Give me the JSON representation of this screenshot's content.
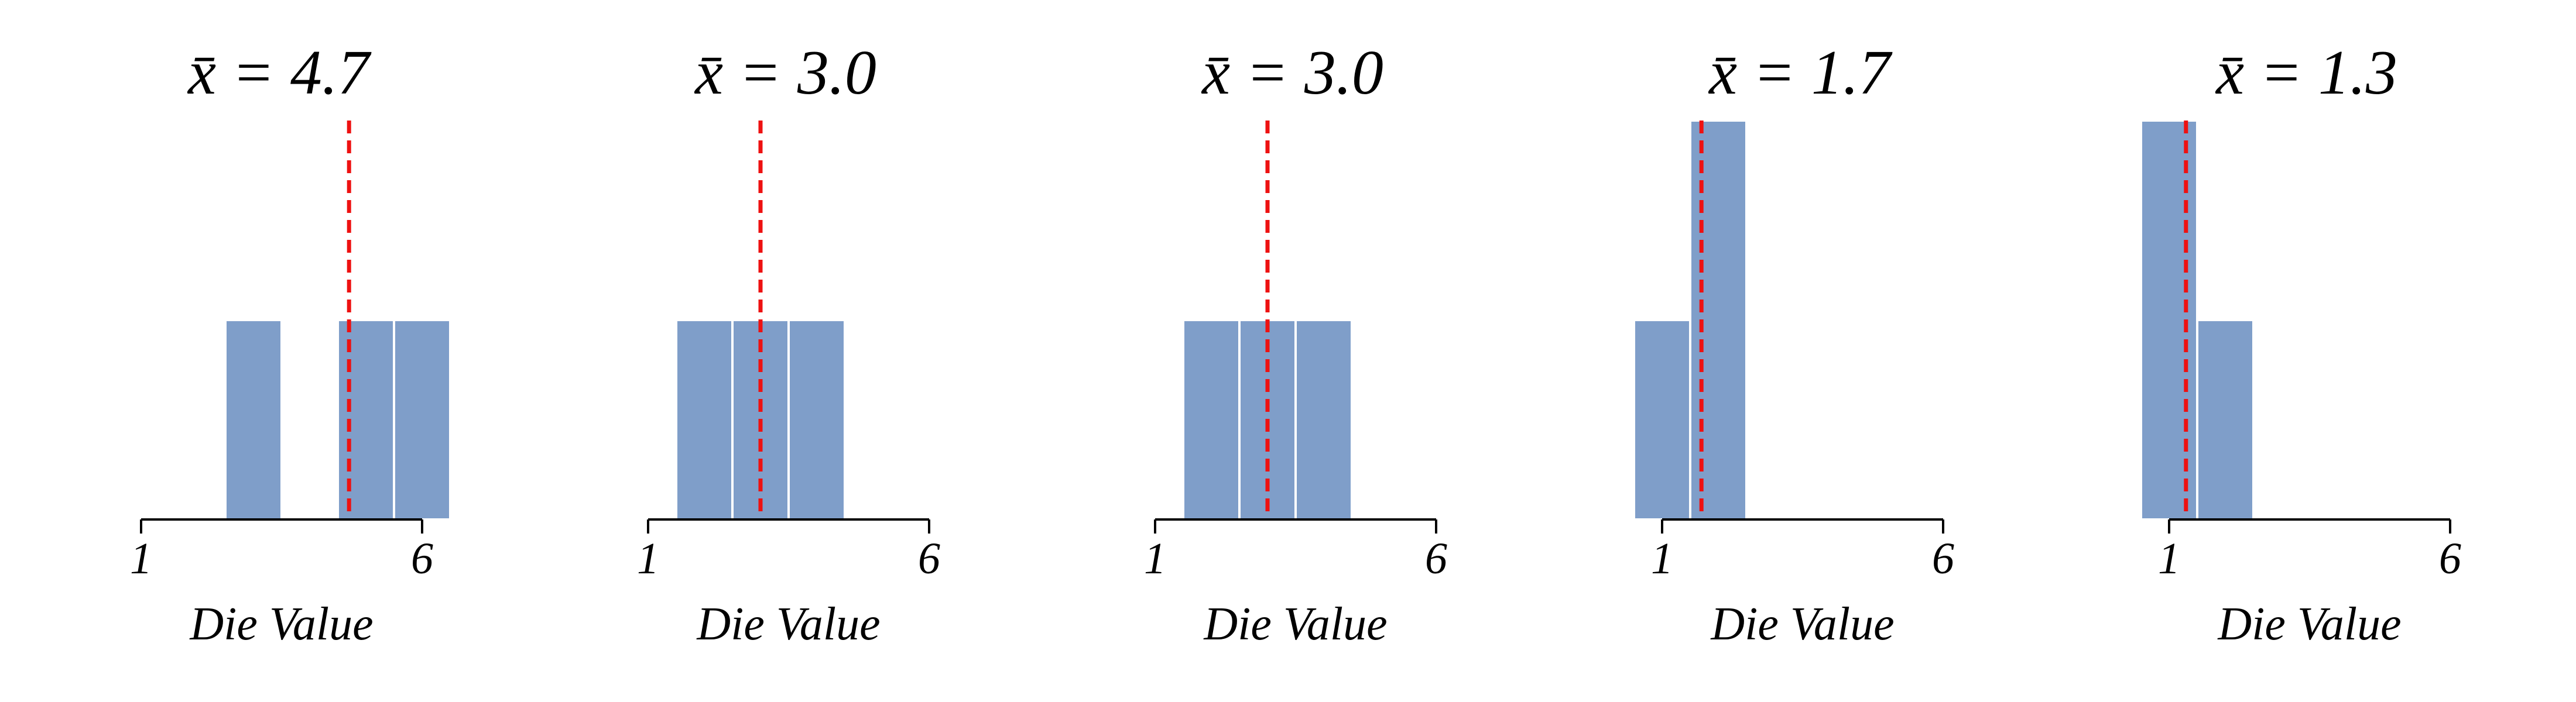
{
  "colors": {
    "bar": "#7f9ec9",
    "bar_edge": "#ffffff",
    "mean_line": "#ee1111",
    "axis": "#000000",
    "text": "#000000"
  },
  "chart_data": [
    {
      "type": "bar",
      "title": "x̄ = 4.7",
      "mean": 4.7,
      "xlabel": "Die Value",
      "x": [
        3,
        5,
        6
      ],
      "values": [
        1,
        1,
        1
      ],
      "xlim": [
        1,
        6
      ],
      "ylim": [
        0,
        2
      ],
      "xticks": [
        "1",
        "6"
      ]
    },
    {
      "type": "bar",
      "title": "x̄ = 3.0",
      "mean": 3.0,
      "xlabel": "Die Value",
      "x": [
        2,
        3,
        4
      ],
      "values": [
        1,
        1,
        1
      ],
      "xlim": [
        1,
        6
      ],
      "ylim": [
        0,
        2
      ],
      "xticks": [
        "1",
        "6"
      ]
    },
    {
      "type": "bar",
      "title": "x̄ = 3.0",
      "mean": 3.0,
      "xlabel": "Die Value",
      "x": [
        2,
        3,
        4
      ],
      "values": [
        1,
        1,
        1
      ],
      "xlim": [
        1,
        6
      ],
      "ylim": [
        0,
        2
      ],
      "xticks": [
        "1",
        "6"
      ]
    },
    {
      "type": "bar",
      "title": "x̄ = 1.7",
      "mean": 1.7,
      "xlabel": "Die Value",
      "x": [
        1,
        2
      ],
      "values": [
        1,
        2
      ],
      "xlim": [
        1,
        6
      ],
      "ylim": [
        0,
        2
      ],
      "xticks": [
        "1",
        "6"
      ]
    },
    {
      "type": "bar",
      "title": "x̄ = 1.3",
      "mean": 1.3,
      "xlabel": "Die Value",
      "x": [
        1,
        2
      ],
      "values": [
        2,
        1
      ],
      "xlim": [
        1,
        6
      ],
      "ylim": [
        0,
        2
      ],
      "xticks": [
        "1",
        "6"
      ]
    }
  ]
}
